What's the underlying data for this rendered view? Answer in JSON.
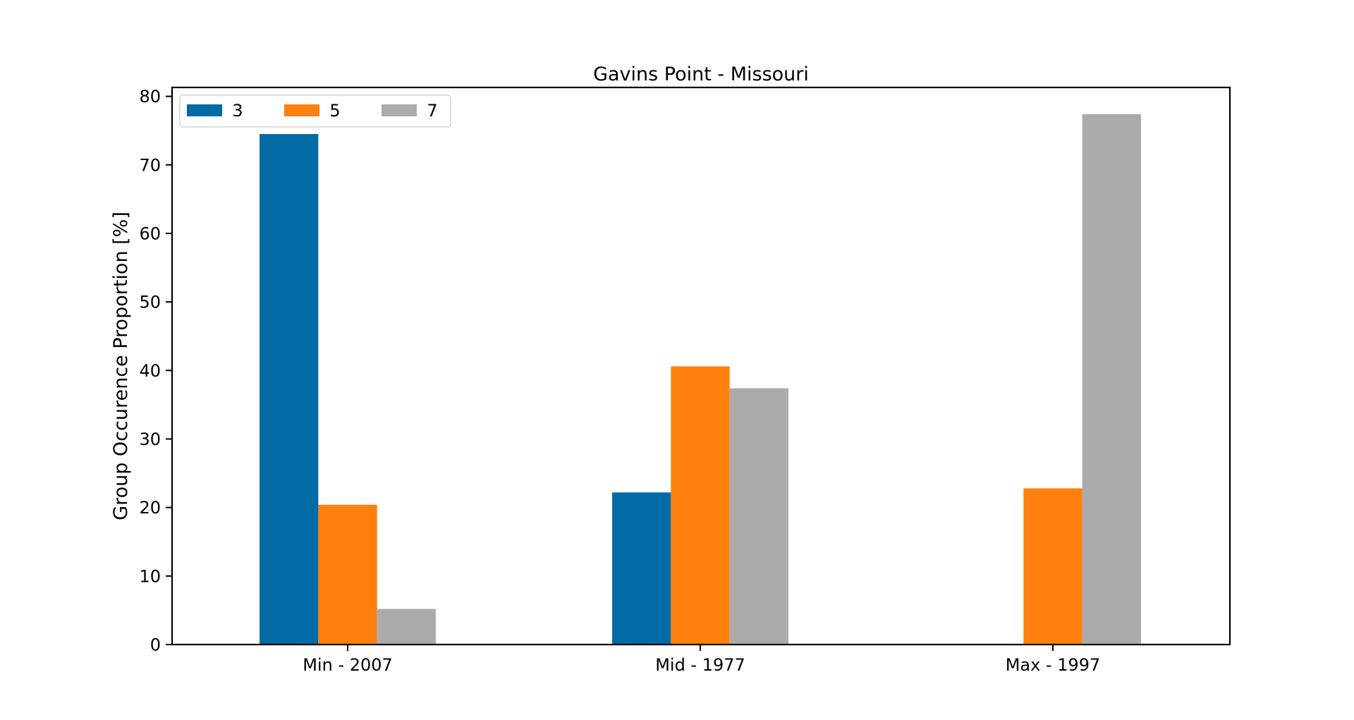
{
  "chart_data": {
    "type": "bar",
    "title": "Gavins Point - Missouri",
    "xlabel": "",
    "ylabel": "Group Occurence Proportion [%]",
    "categories": [
      "Min - 2007",
      "Mid - 1977",
      "Max - 1997"
    ],
    "series": [
      {
        "name": "3",
        "color": "#006BA4",
        "values": [
          74.5,
          22.2,
          0
        ]
      },
      {
        "name": "5",
        "color": "#FF800E",
        "values": [
          20.4,
          40.6,
          22.8
        ]
      },
      {
        "name": "7",
        "color": "#ABABAB",
        "values": [
          5.2,
          37.4,
          77.4
        ]
      }
    ],
    "ylim": [
      0,
      81.3
    ],
    "yticks": [
      "0",
      "10",
      "20",
      "30",
      "40",
      "50",
      "60",
      "70",
      "80"
    ],
    "legend_position": "upper-left",
    "grid": false
  }
}
